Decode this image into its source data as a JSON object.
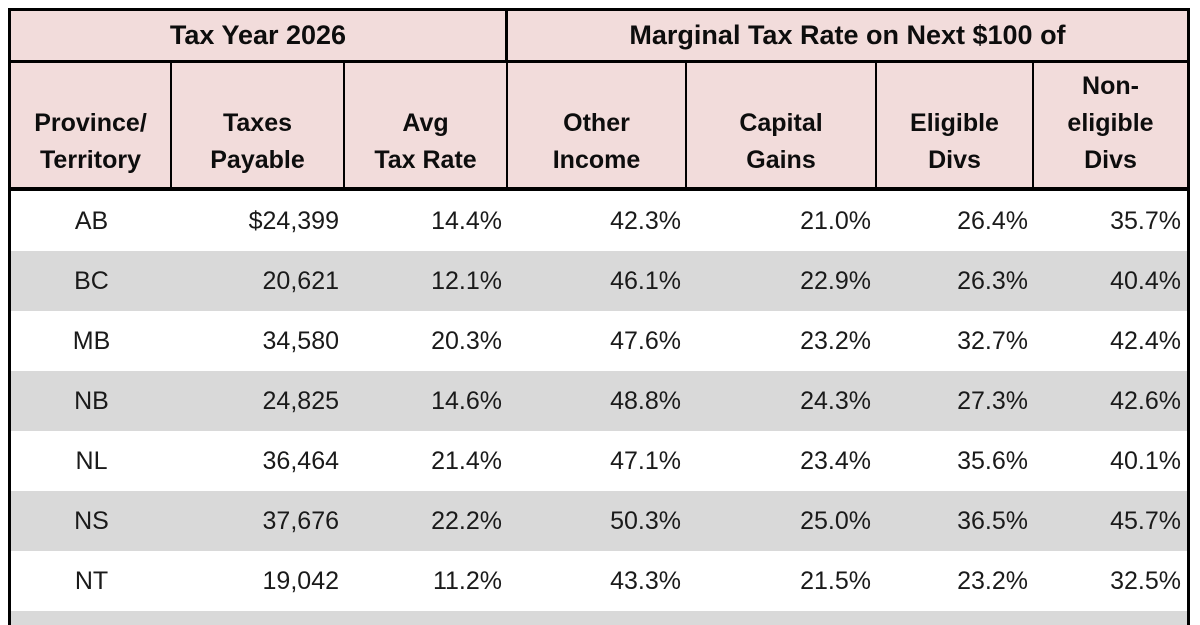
{
  "chart_data": {
    "type": "table",
    "header_groups": [
      "Tax Year 2026",
      "Marginal Tax Rate on Next $100 of"
    ],
    "columns": [
      {
        "id": "province_territory",
        "lines": [
          "Province/",
          "Territory"
        ]
      },
      {
        "id": "taxes_payable",
        "lines": [
          "Taxes",
          "Payable"
        ]
      },
      {
        "id": "avg_tax_rate",
        "lines": [
          "Avg",
          "Tax Rate"
        ]
      },
      {
        "id": "other_income",
        "lines": [
          "Other",
          "Income"
        ]
      },
      {
        "id": "capital_gains",
        "lines": [
          "Capital",
          "Gains"
        ]
      },
      {
        "id": "eligible_divs",
        "lines": [
          "Eligible",
          "Divs"
        ]
      },
      {
        "id": "non_eligible_divs",
        "lines": [
          "Non-",
          "eligible",
          "Divs"
        ]
      }
    ],
    "rows": [
      [
        "AB",
        "$24,399",
        "14.4%",
        "42.3%",
        "21.0%",
        "26.4%",
        "35.7%"
      ],
      [
        "BC",
        "20,621",
        "12.1%",
        "46.1%",
        "22.9%",
        "26.3%",
        "40.4%"
      ],
      [
        "MB",
        "34,580",
        "20.3%",
        "47.6%",
        "23.2%",
        "32.7%",
        "42.4%"
      ],
      [
        "NB",
        "24,825",
        "14.6%",
        "48.8%",
        "24.3%",
        "27.3%",
        "42.6%"
      ],
      [
        "NL",
        "36,464",
        "21.4%",
        "47.1%",
        "23.4%",
        "35.6%",
        "40.1%"
      ],
      [
        "NS",
        "37,676",
        "22.2%",
        "50.3%",
        "25.0%",
        "36.5%",
        "45.7%"
      ],
      [
        "NT",
        "19,042",
        "11.2%",
        "43.3%",
        "21.5%",
        "23.2%",
        "32.5%"
      ]
    ],
    "partial_next_row_visible": true,
    "layout_hints": {
      "banding": "alternating white and gray data rows",
      "header_text_align": "center-bottom"
    },
    "colors": {
      "header_bg": "#f2dcdb",
      "row_bg": "#ffffff",
      "row_alt_bg": "#d9d9d9",
      "border": "#000000",
      "text": "#1a1a1a"
    }
  }
}
